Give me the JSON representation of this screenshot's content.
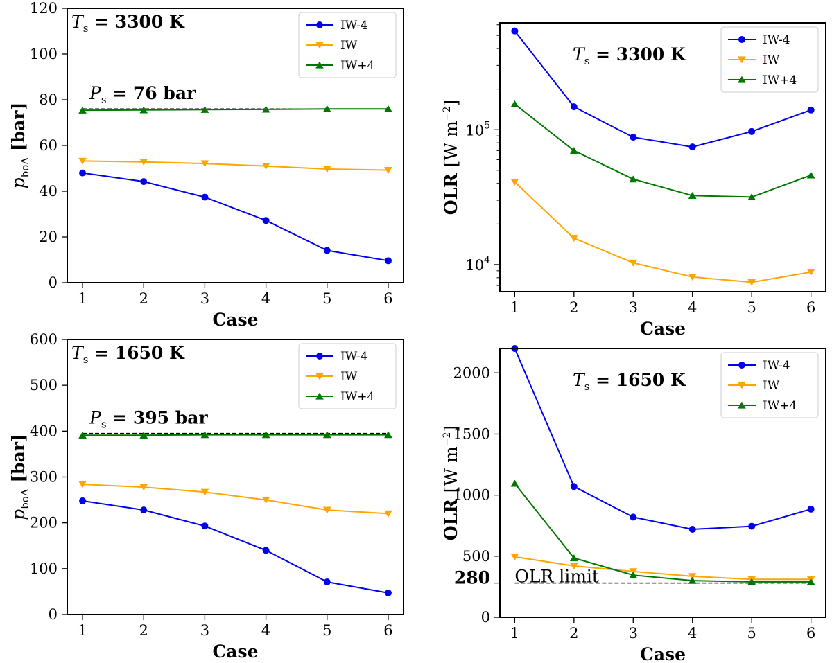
{
  "colors": {
    "IW-4": "#0000ee",
    "IW": "#ffa500",
    "IW+4": "#007700",
    "frame": "#000000",
    "reference_line": "#000000"
  },
  "chart_data": [
    {
      "id": "p_boa_3300",
      "type": "line",
      "xlabel": "Case",
      "ylabel_main": "p",
      "ylabel_sub": "boA",
      "ylabel_unit": "[bar]",
      "x": [
        1,
        2,
        3,
        4,
        5,
        6
      ],
      "xlim": [
        0.75,
        6.25
      ],
      "ylim": [
        0,
        120
      ],
      "yscale": "linear",
      "yticks": [
        0,
        20,
        40,
        60,
        80,
        100,
        120
      ],
      "ytick_labels": [
        "0",
        "20",
        "40",
        "60",
        "80",
        "100",
        "120"
      ],
      "series": [
        {
          "name": "IW-4",
          "marker": "circle",
          "values": [
            48,
            44.2,
            37.4,
            27.2,
            14.1,
            9.6
          ]
        },
        {
          "name": "IW",
          "marker": "triangle-down",
          "values": [
            53.2,
            52.8,
            52.1,
            51,
            49.7,
            49.2
          ]
        },
        {
          "name": "IW+4",
          "marker": "triangle-up",
          "values": [
            75.4,
            75.5,
            75.7,
            75.8,
            76,
            76
          ]
        }
      ],
      "reference_line": {
        "y": 76,
        "style": "dashed"
      },
      "annotations": [
        {
          "var": "T",
          "sub": "s",
          "text": " = 3300 K",
          "position": "top-left"
        },
        {
          "var": "P",
          "sub": "s",
          "text": " = 76 bar",
          "position": "above-reference-line"
        }
      ],
      "legend": {
        "position": "top-right",
        "entries": [
          "IW-4",
          "IW",
          "IW+4"
        ]
      }
    },
    {
      "id": "olr_3300",
      "type": "line",
      "xlabel": "Case",
      "ylabel_main": "OLR",
      "ylabel_unit": "[W m",
      "ylabel_exp": "−2",
      "ylabel_close": "]",
      "x": [
        1,
        2,
        3,
        4,
        5,
        6
      ],
      "xlim": [
        0.75,
        6.25
      ],
      "ylim": [
        6300,
        620000
      ],
      "yscale": "log",
      "ytick_major": [
        {
          "value": 10000,
          "base": "10",
          "exp": "4"
        },
        {
          "value": 100000,
          "base": "10",
          "exp": "5"
        }
      ],
      "series": [
        {
          "name": "IW-4",
          "marker": "circle",
          "values": [
            540000,
            148000,
            88000,
            74500,
            97000,
            140000
          ]
        },
        {
          "name": "IW",
          "marker": "triangle-down",
          "values": [
            41000,
            15700,
            10300,
            8100,
            7400,
            8800
          ]
        },
        {
          "name": "IW+4",
          "marker": "triangle-up",
          "values": [
            155000,
            70000,
            43000,
            32500,
            31700,
            46000
          ]
        }
      ],
      "annotations": [
        {
          "var": "T",
          "sub": "s",
          "text": " = 3300 K",
          "position": "top-center"
        }
      ],
      "legend": {
        "position": "top-right",
        "entries": [
          "IW-4",
          "IW",
          "IW+4"
        ]
      }
    },
    {
      "id": "p_boa_1650",
      "type": "line",
      "xlabel": "Case",
      "ylabel_main": "p",
      "ylabel_sub": "boA",
      "ylabel_unit": "[bar]",
      "x": [
        1,
        2,
        3,
        4,
        5,
        6
      ],
      "xlim": [
        0.75,
        6.25
      ],
      "ylim": [
        0,
        600
      ],
      "yscale": "linear",
      "yticks": [
        0,
        100,
        200,
        300,
        400,
        500,
        600
      ],
      "ytick_labels": [
        "0",
        "100",
        "200",
        "300",
        "400",
        "500",
        "600"
      ],
      "series": [
        {
          "name": "IW-4",
          "marker": "circle",
          "values": [
            248,
            228,
            193,
            140,
            71,
            47
          ]
        },
        {
          "name": "IW",
          "marker": "triangle-down",
          "values": [
            284,
            278,
            267,
            250,
            228,
            220
          ]
        },
        {
          "name": "IW+4",
          "marker": "triangle-up",
          "values": [
            391,
            391,
            392,
            392,
            392,
            392
          ]
        }
      ],
      "reference_line": {
        "y": 395,
        "style": "dashed"
      },
      "annotations": [
        {
          "var": "T",
          "sub": "s",
          "text": " = 1650 K",
          "position": "top-left"
        },
        {
          "var": "P",
          "sub": "s",
          "text": " = 395 bar",
          "position": "above-reference-line"
        }
      ],
      "legend": {
        "position": "top-right",
        "entries": [
          "IW-4",
          "IW",
          "IW+4"
        ]
      }
    },
    {
      "id": "olr_1650",
      "type": "line",
      "xlabel": "Case",
      "ylabel_main": "OLR",
      "ylabel_unit": "[W m",
      "ylabel_exp": "−2",
      "ylabel_close": "]",
      "x": [
        1,
        2,
        3,
        4,
        5,
        6
      ],
      "xlim": [
        0.75,
        6.25
      ],
      "ylim": [
        0,
        2200
      ],
      "yscale": "linear",
      "yticks": [
        0,
        500,
        1000,
        1500,
        2000
      ],
      "ytick_labels": [
        "0",
        "500",
        "1000",
        "1500",
        "2000"
      ],
      "extra_tick": {
        "value": 280,
        "label": "280"
      },
      "series": [
        {
          "name": "IW-4",
          "marker": "circle",
          "values": [
            2200,
            1070,
            820,
            720,
            745,
            885
          ]
        },
        {
          "name": "IW",
          "marker": "triangle-down",
          "values": [
            495,
            420,
            375,
            335,
            310,
            310
          ]
        },
        {
          "name": "IW+4",
          "marker": "triangle-up",
          "values": [
            1095,
            485,
            345,
            300,
            290,
            290
          ]
        }
      ],
      "reference_line": {
        "y": 280,
        "style": "dashed",
        "label": "OLR limit"
      },
      "annotations": [
        {
          "var": "T",
          "sub": "s",
          "text": " = 1650 K",
          "position": "top-center"
        }
      ],
      "legend": {
        "position": "top-right",
        "entries": [
          "IW-4",
          "IW",
          "IW+4"
        ]
      }
    }
  ]
}
